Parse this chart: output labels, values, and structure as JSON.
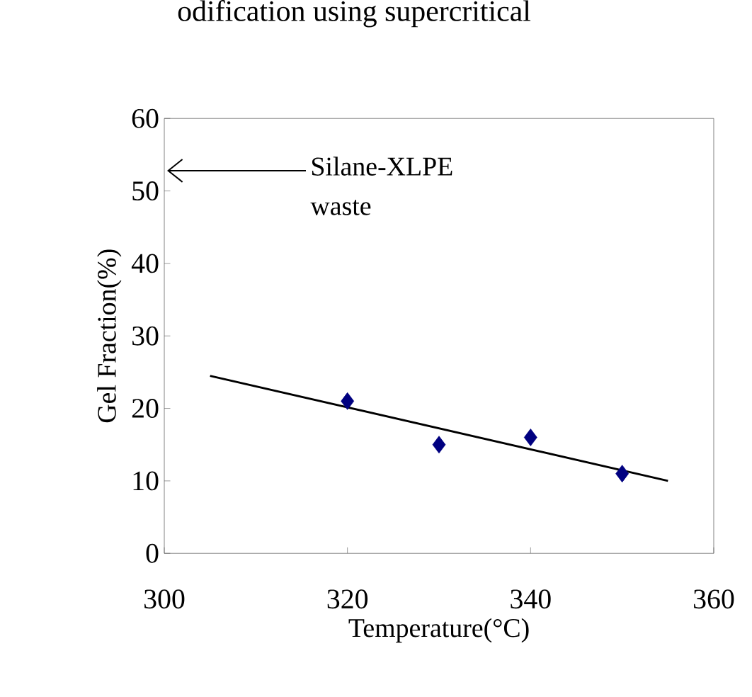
{
  "chart_data": {
    "type": "scatter",
    "xlabel": "Temperature(°C)",
    "ylabel": "Gel Fraction(%)",
    "xlim": [
      300,
      360
    ],
    "xticks": [
      300,
      320,
      340,
      360
    ],
    "ylim": [
      0,
      60
    ],
    "yticks": [
      0,
      10,
      20,
      30,
      40,
      50,
      60
    ],
    "marker": "diamond",
    "series": [
      {
        "color": "#000080",
        "x": [
          320,
          330,
          340,
          350
        ],
        "values": [
          21,
          15,
          16,
          11
        ]
      },
      {
        "type": "line",
        "marker": "none",
        "color": "#000000",
        "x": [
          305,
          355
        ],
        "values": [
          24.5,
          10
        ]
      }
    ],
    "annotations": [
      "odification using supercritical",
      "Silane-XLPE waste"
    ]
  }
}
